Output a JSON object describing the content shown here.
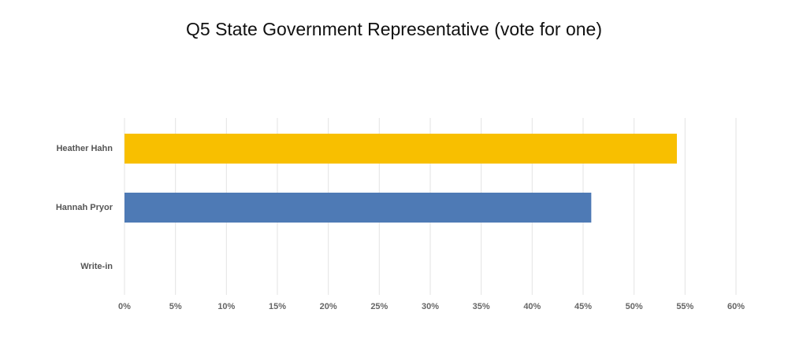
{
  "chart_data": {
    "type": "bar",
    "orientation": "horizontal",
    "title": "Q5 State Government Representative (vote for one)",
    "categories": [
      "Heather Hahn",
      "Hannah Pryor",
      "Write-in"
    ],
    "values": [
      54.2,
      45.8,
      0
    ],
    "colors": [
      "#f8bf00",
      "#4e7ab5",
      "#4e7ab5"
    ],
    "xlim": [
      0,
      60
    ],
    "xticks": [
      {
        "value": 0,
        "label": "0%"
      },
      {
        "value": 5,
        "label": "5%"
      },
      {
        "value": 10,
        "label": "10%"
      },
      {
        "value": 15,
        "label": "15%"
      },
      {
        "value": 20,
        "label": "20%"
      },
      {
        "value": 25,
        "label": "25%"
      },
      {
        "value": 30,
        "label": "30%"
      },
      {
        "value": 35,
        "label": "35%"
      },
      {
        "value": 40,
        "label": "40%"
      },
      {
        "value": 45,
        "label": "45%"
      },
      {
        "value": 50,
        "label": "50%"
      },
      {
        "value": 55,
        "label": "55%"
      },
      {
        "value": 60,
        "label": "60%"
      }
    ],
    "grid": true
  }
}
